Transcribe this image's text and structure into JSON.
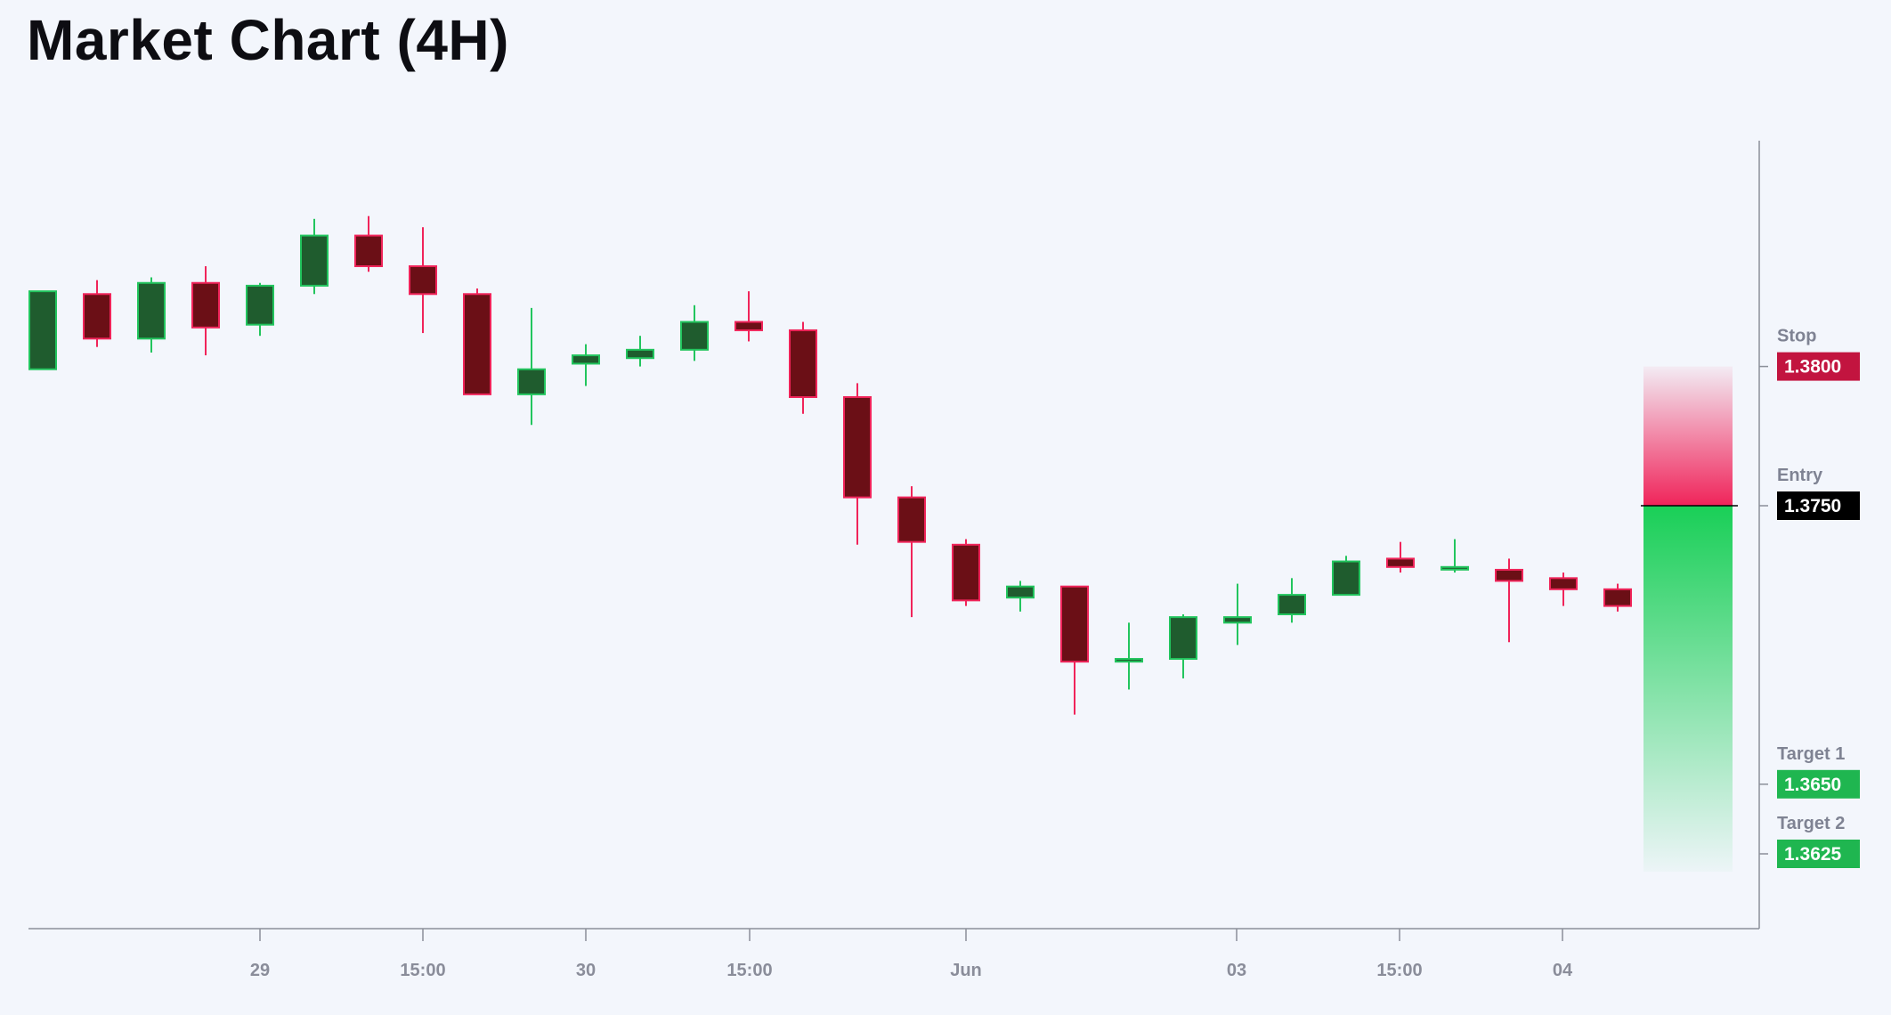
{
  "header": {
    "title": "Market Chart (4H)"
  },
  "colors": {
    "background": "#f3f6fc",
    "up_body": "#1f5c2e",
    "up_border": "#22c55e",
    "down_body": "#6b0f16",
    "down_border": "#f0245a",
    "axis": "#8b8f99",
    "stop": "#c2143f",
    "entry": "#000000",
    "target": "#1fb650"
  },
  "chart_data": {
    "type": "candlestick",
    "title": "Market Chart (4H)",
    "xlabel": "",
    "ylabel": "",
    "x_tick_labels": [
      "29",
      "15:00",
      "30",
      "15:00",
      "Jun",
      "03",
      "15:00",
      "04"
    ],
    "candles": [
      {
        "o": 1.3799,
        "h": 1.3827,
        "l": 1.3799,
        "c": 1.3827
      },
      {
        "o": 1.3826,
        "h": 1.3831,
        "l": 1.3807,
        "c": 1.381
      },
      {
        "o": 1.381,
        "h": 1.3832,
        "l": 1.3805,
        "c": 1.383
      },
      {
        "o": 1.383,
        "h": 1.3836,
        "l": 1.3804,
        "c": 1.3814
      },
      {
        "o": 1.3815,
        "h": 1.383,
        "l": 1.3811,
        "c": 1.3829
      },
      {
        "o": 1.3829,
        "h": 1.3853,
        "l": 1.3826,
        "c": 1.3847
      },
      {
        "o": 1.3847,
        "h": 1.3854,
        "l": 1.3834,
        "c": 1.3836
      },
      {
        "o": 1.3836,
        "h": 1.385,
        "l": 1.3812,
        "c": 1.3826
      },
      {
        "o": 1.3826,
        "h": 1.3828,
        "l": 1.379,
        "c": 1.379
      },
      {
        "o": 1.379,
        "h": 1.3821,
        "l": 1.3779,
        "c": 1.3799
      },
      {
        "o": 1.3801,
        "h": 1.3808,
        "l": 1.3793,
        "c": 1.3804
      },
      {
        "o": 1.3803,
        "h": 1.3811,
        "l": 1.38,
        "c": 1.3806
      },
      {
        "o": 1.3806,
        "h": 1.3822,
        "l": 1.3802,
        "c": 1.3816
      },
      {
        "o": 1.3816,
        "h": 1.3827,
        "l": 1.3809,
        "c": 1.3813
      },
      {
        "o": 1.3813,
        "h": 1.3816,
        "l": 1.3783,
        "c": 1.3789
      },
      {
        "o": 1.3789,
        "h": 1.3794,
        "l": 1.3736,
        "c": 1.3753
      },
      {
        "o": 1.3753,
        "h": 1.3757,
        "l": 1.371,
        "c": 1.3737
      },
      {
        "o": 1.3736,
        "h": 1.3738,
        "l": 1.3714,
        "c": 1.3716
      },
      {
        "o": 1.3717,
        "h": 1.3723,
        "l": 1.3712,
        "c": 1.3721
      },
      {
        "o": 1.3721,
        "h": 1.3721,
        "l": 1.3675,
        "c": 1.3694
      },
      {
        "o": 1.3694,
        "h": 1.3708,
        "l": 1.3684,
        "c": 1.3695
      },
      {
        "o": 1.3695,
        "h": 1.3711,
        "l": 1.3688,
        "c": 1.371
      },
      {
        "o": 1.3708,
        "h": 1.3722,
        "l": 1.37,
        "c": 1.371
      },
      {
        "o": 1.3711,
        "h": 1.3724,
        "l": 1.3708,
        "c": 1.3718
      },
      {
        "o": 1.3718,
        "h": 1.3732,
        "l": 1.3718,
        "c": 1.373
      },
      {
        "o": 1.3731,
        "h": 1.3737,
        "l": 1.3726,
        "c": 1.3728
      },
      {
        "o": 1.3728,
        "h": 1.3738,
        "l": 1.3726,
        "c": 1.3728
      },
      {
        "o": 1.3727,
        "h": 1.3731,
        "l": 1.3701,
        "c": 1.3723
      },
      {
        "o": 1.3724,
        "h": 1.3726,
        "l": 1.3714,
        "c": 1.372
      },
      {
        "o": 1.372,
        "h": 1.3722,
        "l": 1.3712,
        "c": 1.3714
      }
    ],
    "levels": [
      {
        "name": "Stop",
        "value": "1.3800",
        "price": 1.38,
        "kind": "stop"
      },
      {
        "name": "Entry",
        "value": "1.3750",
        "price": 1.375,
        "kind": "entry"
      },
      {
        "name": "Target 1",
        "value": "1.3650",
        "price": 1.365,
        "kind": "target"
      },
      {
        "name": "Target 2",
        "value": "1.3625",
        "price": 1.3625,
        "kind": "target"
      }
    ],
    "position": {
      "entry": 1.375,
      "stop": 1.38,
      "target": 1.3625
    },
    "grid": false,
    "legend": "none"
  }
}
